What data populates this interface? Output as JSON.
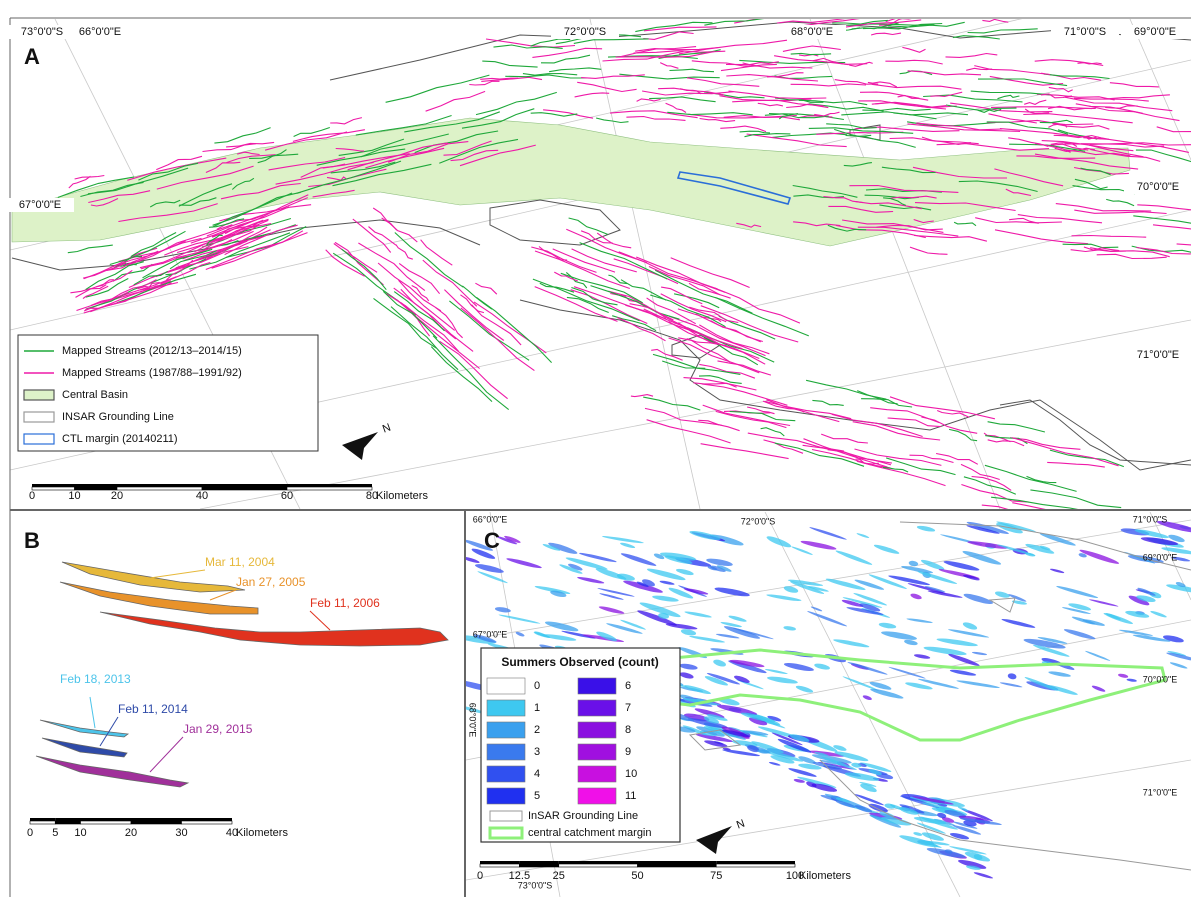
{
  "panel_a": {
    "label": "A",
    "coordinate_labels": [
      "73°0'0\"S",
      "66°0'0\"E",
      "72°0'0\"S",
      "68°0'0\"E",
      "71°0'0\"S",
      "69°0'0\"E",
      "67°0'0\"E",
      "70°0'0\"E",
      "71°0'0\"E"
    ],
    "legend": [
      {
        "label": "Mapped Streams (2012/13–2014/15)",
        "color": "#1fa83a"
      },
      {
        "label": "Mapped Streams (1987/88–1991/92)",
        "color": "#ee1aa8"
      },
      {
        "label": "Central Basin",
        "color": "#ddf2c8"
      },
      {
        "label": "INSAR Grounding Line",
        "color": "#9a9a9a"
      },
      {
        "label": "CTL margin (20140211)",
        "color": "#2a6ed8"
      }
    ],
    "north": "N",
    "scale": {
      "ticks": [
        0,
        10,
        20,
        40,
        60,
        80
      ],
      "unit": "Kilometers"
    }
  },
  "panel_b": {
    "label": "B",
    "dates": [
      {
        "label": "Mar 11, 2004",
        "color": "#e6b83a"
      },
      {
        "label": "Jan 27, 2005",
        "color": "#e8922a"
      },
      {
        "label": "Feb 11, 2006",
        "color": "#e0321e"
      },
      {
        "label": "Feb 18, 2013",
        "color": "#4cc4ea"
      },
      {
        "label": "Feb 11, 2014",
        "color": "#2e4aa8"
      },
      {
        "label": "Jan 29, 2015",
        "color": "#a0309a"
      }
    ],
    "scale": {
      "ticks": [
        0,
        5,
        10,
        20,
        30,
        40
      ],
      "unit": "Kilometers"
    }
  },
  "panel_c": {
    "label": "C",
    "coordinate_labels": [
      "66°0'0\"E",
      "72°0'0\"S",
      "71°0'0\"S",
      "69°0'0\"E",
      "67°0'0\"E",
      "70°0'0\"E",
      "71°0'0\"E",
      "68°0'0\"E",
      "73°0'0\"S"
    ],
    "legend_title": "Summers Observed (count)",
    "counts": [
      {
        "value": 0,
        "color": "#ffffff"
      },
      {
        "value": 1,
        "color": "#3ec8f0"
      },
      {
        "value": 2,
        "color": "#3aa0ee"
      },
      {
        "value": 3,
        "color": "#3a7aee"
      },
      {
        "value": 4,
        "color": "#3050f0"
      },
      {
        "value": 5,
        "color": "#2030f0"
      },
      {
        "value": 6,
        "color": "#3a10e8"
      },
      {
        "value": 7,
        "color": "#6a10e8"
      },
      {
        "value": 8,
        "color": "#8a10e0"
      },
      {
        "value": 9,
        "color": "#a010e0"
      },
      {
        "value": 10,
        "color": "#c810e0"
      },
      {
        "value": 11,
        "color": "#f010e8"
      }
    ],
    "lines": [
      {
        "label": "InSAR Grounding Line",
        "color": "#999999"
      },
      {
        "label": "central catchment margin",
        "color": "#8ef07a"
      }
    ],
    "north": "N",
    "scale": {
      "ticks": [
        0,
        12.5,
        25,
        50,
        75,
        100
      ],
      "unit": "Kilometers"
    }
  }
}
